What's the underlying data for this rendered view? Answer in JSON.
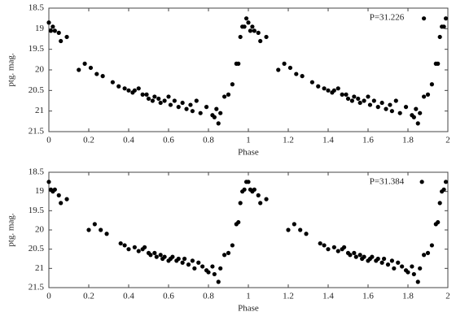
{
  "chart_data": [
    {
      "type": "scatter",
      "annotation": "P=31.226",
      "xlabel": "Phase",
      "ylabel": "ptg. mag.",
      "color": "#000000",
      "y_inverted": true,
      "xlim": [
        0,
        2
      ],
      "ylim": [
        18.5,
        21.5
      ],
      "xticks": [
        0,
        0.2,
        0.4,
        0.6,
        0.8,
        1,
        1.2,
        1.4,
        1.6,
        1.8,
        2
      ],
      "yticks": [
        18.5,
        19,
        19.5,
        20,
        20.5,
        21,
        21.5
      ],
      "x": [
        0,
        0.01,
        0.02,
        0.03,
        0.05,
        0.06,
        0.09,
        0.15,
        0.18,
        0.21,
        0.24,
        0.27,
        0.32,
        0.35,
        0.38,
        0.4,
        0.42,
        0.43,
        0.45,
        0.47,
        0.49,
        0.5,
        0.52,
        0.53,
        0.55,
        0.56,
        0.58,
        0.6,
        0.61,
        0.63,
        0.65,
        0.67,
        0.69,
        0.71,
        0.72,
        0.74,
        0.76,
        0.79,
        0.82,
        0.83,
        0.84,
        0.85,
        0.86,
        0.88,
        0.9,
        0.92,
        0.94,
        0.95,
        0.96,
        0.97,
        0.98,
        0.99,
        1,
        1.01,
        1.02,
        1.03,
        1.05,
        1.06,
        1.09,
        1.15,
        1.18,
        1.21,
        1.24,
        1.27,
        1.32,
        1.35,
        1.38,
        1.4,
        1.42,
        1.43,
        1.45,
        1.47,
        1.49,
        1.5,
        1.52,
        1.53,
        1.55,
        1.56,
        1.58,
        1.6,
        1.61,
        1.63,
        1.65,
        1.67,
        1.69,
        1.71,
        1.72,
        1.74,
        1.76,
        1.79,
        1.82,
        1.83,
        1.84,
        1.85,
        1.86,
        1.88,
        1.9,
        1.92,
        1.94,
        1.95,
        1.96,
        1.97,
        1.98,
        1.99,
        1.88
      ],
      "values": [
        18.85,
        19.05,
        18.95,
        19.05,
        19.1,
        19.3,
        19.2,
        20.0,
        19.85,
        19.95,
        20.1,
        20.15,
        20.3,
        20.4,
        20.45,
        20.5,
        20.55,
        20.5,
        20.45,
        20.6,
        20.6,
        20.7,
        20.75,
        20.65,
        20.7,
        20.8,
        20.75,
        20.65,
        20.85,
        20.75,
        20.9,
        20.8,
        20.95,
        20.85,
        21.0,
        20.75,
        21.05,
        20.9,
        21.1,
        21.15,
        20.95,
        21.3,
        21.05,
        20.65,
        20.6,
        20.35,
        19.85,
        19.85,
        19.2,
        18.95,
        18.95,
        18.75,
        18.85,
        19.05,
        18.95,
        19.05,
        19.1,
        19.3,
        19.2,
        20.0,
        19.85,
        19.95,
        20.1,
        20.15,
        20.3,
        20.4,
        20.45,
        20.5,
        20.55,
        20.5,
        20.45,
        20.6,
        20.6,
        20.7,
        20.75,
        20.65,
        20.7,
        20.8,
        20.75,
        20.65,
        20.85,
        20.75,
        20.9,
        20.8,
        20.95,
        20.85,
        21.0,
        20.75,
        21.05,
        20.9,
        21.1,
        21.15,
        20.95,
        21.3,
        21.05,
        20.65,
        20.6,
        20.35,
        19.85,
        19.85,
        19.2,
        18.95,
        18.95,
        18.75,
        18.75
      ]
    },
    {
      "type": "scatter",
      "annotation": "P=31.384",
      "xlabel": "Phase",
      "ylabel": "ptg. mag.",
      "color": "#000000",
      "y_inverted": true,
      "xlim": [
        0,
        2
      ],
      "ylim": [
        18.5,
        21.5
      ],
      "xticks": [
        0,
        0.2,
        0.4,
        0.6,
        0.8,
        1,
        1.2,
        1.4,
        1.6,
        1.8,
        2
      ],
      "yticks": [
        18.5,
        19,
        19.5,
        20,
        20.5,
        21,
        21.5
      ],
      "x": [
        0,
        0.01,
        0.02,
        0.03,
        0.05,
        0.06,
        0.09,
        0.2,
        0.23,
        0.26,
        0.29,
        0.36,
        0.38,
        0.4,
        0.43,
        0.45,
        0.47,
        0.48,
        0.5,
        0.51,
        0.53,
        0.54,
        0.56,
        0.57,
        0.58,
        0.6,
        0.61,
        0.62,
        0.64,
        0.65,
        0.67,
        0.68,
        0.7,
        0.72,
        0.73,
        0.75,
        0.77,
        0.79,
        0.8,
        0.82,
        0.83,
        0.85,
        0.86,
        0.88,
        0.9,
        0.92,
        0.94,
        0.95,
        0.96,
        0.97,
        0.98,
        0.99,
        1,
        1.01,
        1.02,
        1.03,
        1.05,
        1.06,
        1.09,
        1.2,
        1.23,
        1.26,
        1.29,
        1.36,
        1.38,
        1.4,
        1.43,
        1.45,
        1.47,
        1.48,
        1.5,
        1.51,
        1.53,
        1.54,
        1.56,
        1.57,
        1.58,
        1.6,
        1.61,
        1.62,
        1.64,
        1.65,
        1.67,
        1.68,
        1.7,
        1.72,
        1.73,
        1.75,
        1.77,
        1.79,
        1.8,
        1.82,
        1.83,
        1.85,
        1.86,
        1.88,
        1.9,
        1.92,
        1.94,
        1.95,
        1.96,
        1.97,
        1.98,
        1.99,
        1.87
      ],
      "values": [
        18.75,
        18.95,
        19.0,
        18.95,
        19.1,
        19.3,
        19.2,
        20.0,
        19.85,
        20.0,
        20.1,
        20.35,
        20.4,
        20.5,
        20.45,
        20.55,
        20.5,
        20.45,
        20.6,
        20.65,
        20.6,
        20.7,
        20.65,
        20.75,
        20.7,
        20.8,
        20.75,
        20.7,
        20.8,
        20.75,
        20.85,
        20.75,
        20.9,
        20.8,
        21.0,
        20.85,
        20.95,
        21.05,
        21.1,
        20.95,
        21.15,
        21.35,
        21.0,
        20.65,
        20.6,
        20.4,
        19.85,
        19.8,
        19.3,
        19.0,
        18.95,
        18.75,
        18.75,
        18.95,
        19.0,
        18.95,
        19.1,
        19.3,
        19.2,
        20.0,
        19.85,
        20.0,
        20.1,
        20.35,
        20.4,
        20.5,
        20.45,
        20.55,
        20.5,
        20.45,
        20.6,
        20.65,
        20.6,
        20.7,
        20.65,
        20.75,
        20.7,
        20.8,
        20.75,
        20.7,
        20.8,
        20.75,
        20.85,
        20.75,
        20.9,
        20.8,
        21.0,
        20.85,
        20.95,
        21.05,
        21.1,
        20.95,
        21.15,
        21.35,
        21.0,
        20.65,
        20.6,
        20.4,
        19.85,
        19.8,
        19.3,
        19.0,
        18.95,
        18.75,
        18.75
      ]
    }
  ]
}
